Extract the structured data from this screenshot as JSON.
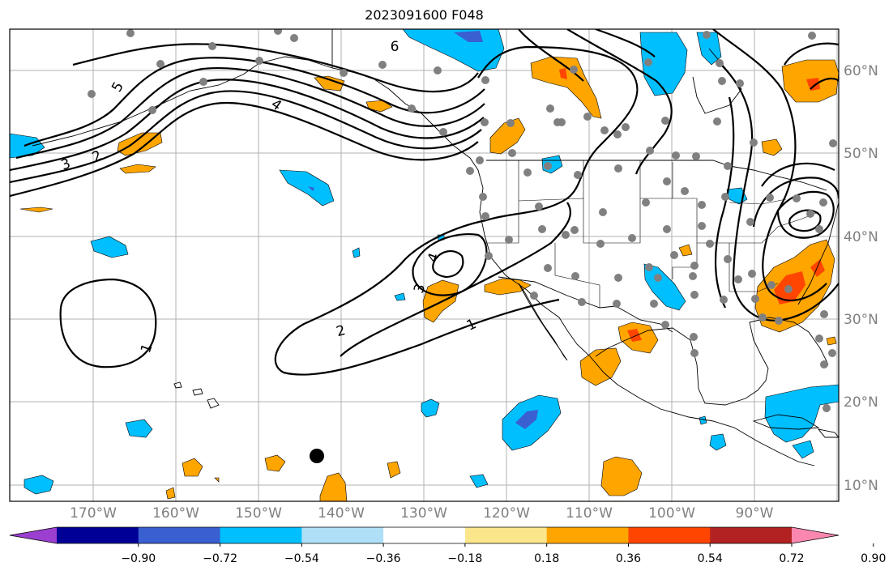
{
  "title": "2023091600 F048",
  "lon_labels": [
    "170°W",
    "160°W",
    "150°W",
    "140°W",
    "130°W",
    "120°W",
    "110°W",
    "100°W",
    "90°W"
  ],
  "lat_labels": [
    "60°N",
    "50°N",
    "40°N",
    "30°N",
    "20°N",
    "10°N"
  ],
  "contour_labels": [
    "6",
    "5",
    "4",
    "3",
    "2",
    "1",
    "1",
    "2",
    "3",
    "4"
  ],
  "colorbar": {
    "ticks": [
      "−0.90",
      "−0.72",
      "−0.54",
      "−0.36",
      "−0.18",
      "0.18",
      "0.36",
      "0.54",
      "0.72",
      "0.90"
    ],
    "colors": [
      "#9b3fd1",
      "#000096",
      "#3a5fd0",
      "#00bfff",
      "#afe0f7",
      "#ffffff",
      "#fbe68c",
      "#ffa500",
      "#ff4500",
      "#b22222",
      "#f987b0"
    ]
  },
  "colors": {
    "negative_light": "#afe0f7",
    "negative_mid": "#00bfff",
    "negative_strong": "#3a5fd0",
    "negative_extreme": "#9b3fd1",
    "positive_light": "#fbe68c",
    "positive_mid": "#ffa500",
    "positive_strong": "#ff4500",
    "station_marker": "#808080",
    "grid": "#b0b0b0",
    "coastline": "#000000"
  }
}
